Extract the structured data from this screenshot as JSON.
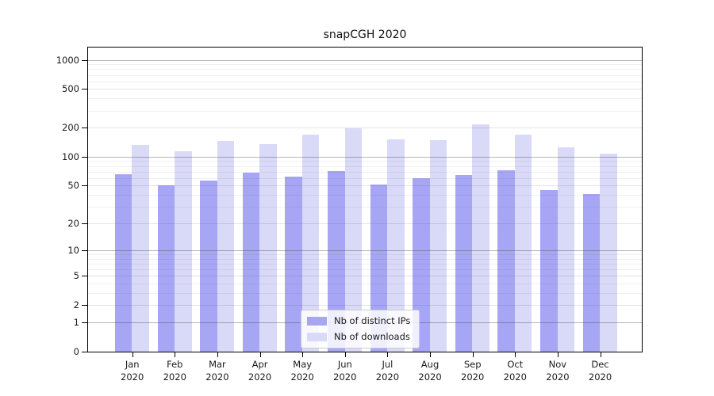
{
  "chart_data": {
    "type": "bar",
    "title": "snapCGH 2020",
    "categories": [
      "Jan",
      "Feb",
      "Mar",
      "Apr",
      "May",
      "Jun",
      "Jul",
      "Aug",
      "Sep",
      "Oct",
      "Nov",
      "Dec"
    ],
    "category_year": "2020",
    "series": [
      {
        "name": "Nb of distinct IPs",
        "color": "#a6a6f5",
        "values": [
          66,
          50,
          57,
          68,
          62,
          71,
          51,
          60,
          64,
          73,
          45,
          41
        ]
      },
      {
        "name": "Nb of downloads",
        "color": "#d9d9f8",
        "values": [
          132,
          113,
          145,
          136,
          168,
          198,
          151,
          148,
          215,
          168,
          125,
          108
        ]
      }
    ],
    "y_axis": {
      "scale": "log1p",
      "ticks": [
        0,
        1,
        2,
        5,
        10,
        20,
        50,
        100,
        200,
        500,
        1000
      ],
      "minor_ticks": [
        3,
        4,
        6,
        7,
        8,
        9,
        30,
        40,
        60,
        70,
        80,
        90,
        300,
        400,
        600,
        700,
        800,
        900
      ],
      "emphasized_gridlines": [
        1,
        10,
        100,
        1000
      ],
      "ylim": [
        0,
        1360
      ]
    },
    "legend": {
      "position": "inside-bottom-center"
    },
    "grid": "on"
  }
}
